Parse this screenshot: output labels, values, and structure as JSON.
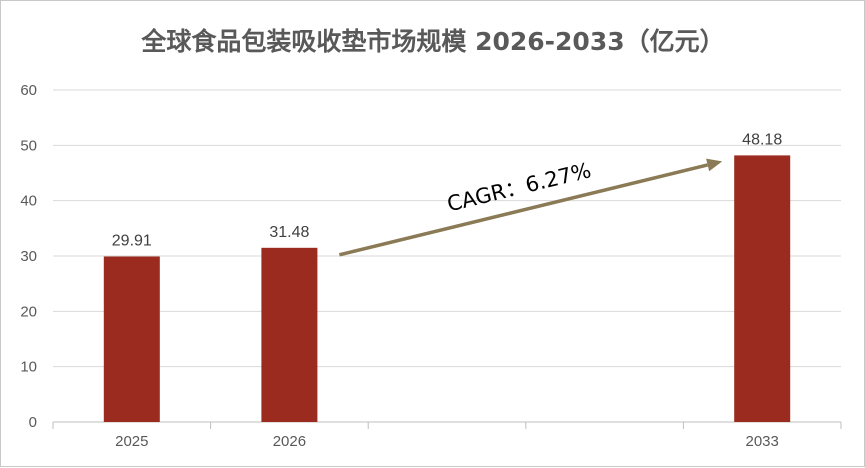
{
  "chart_data": {
    "type": "bar",
    "title": "全球食品包装吸收垫市场规模 2026-2033（亿元）",
    "categories": [
      "2025",
      "2026",
      "",
      "",
      "2033"
    ],
    "values": [
      29.91,
      31.48,
      null,
      null,
      48.18
    ],
    "data_labels": [
      "29.91",
      "31.48",
      "",
      "",
      "48.18"
    ],
    "yticks": [
      "0",
      "10",
      "20",
      "30",
      "40",
      "50",
      "60"
    ],
    "ylim": [
      0,
      60
    ],
    "xlabel": "",
    "ylabel": "",
    "grid": true,
    "legend": "none",
    "bar_color": "#9b2b1e",
    "gridline_color": "#d9d9d9",
    "annotation": {
      "text": "CAGR：6.27%",
      "arrow_color": "#8a7a55",
      "from_category": "2026",
      "to_category": "2033"
    }
  }
}
